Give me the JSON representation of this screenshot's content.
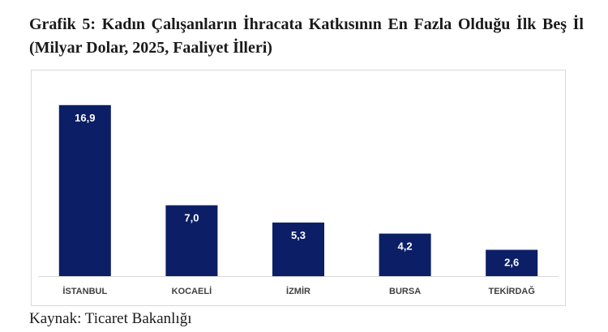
{
  "title": "Grafik 5: Kadın Çalışanların İhracata Katkısının En Fazla Olduğu İlk Beş İl (Milyar Dolar, 2025, Faaliyet İlleri)",
  "source": "Kaynak: Ticaret Bakanlığı",
  "colors": {
    "bar": "#0b1e66"
  },
  "chart_data": {
    "type": "bar",
    "categories": [
      "İSTANBUL",
      "KOCAELİ",
      "İZMİR",
      "BURSA",
      "TEKİRDAĞ"
    ],
    "values": [
      16.9,
      7.0,
      5.3,
      4.2,
      2.6
    ],
    "value_labels": [
      "16,9",
      "7,0",
      "5,3",
      "4,2",
      "2,6"
    ],
    "title": "Grafik 5: Kadın Çalışanların İhracata Katkısının En Fazla Olduğu İlk Beş İl (Milyar Dolar, 2025, Faaliyet İlleri)",
    "xlabel": "",
    "ylabel": "",
    "ylim": [
      0,
      18
    ],
    "grid": false,
    "legend": "none"
  }
}
